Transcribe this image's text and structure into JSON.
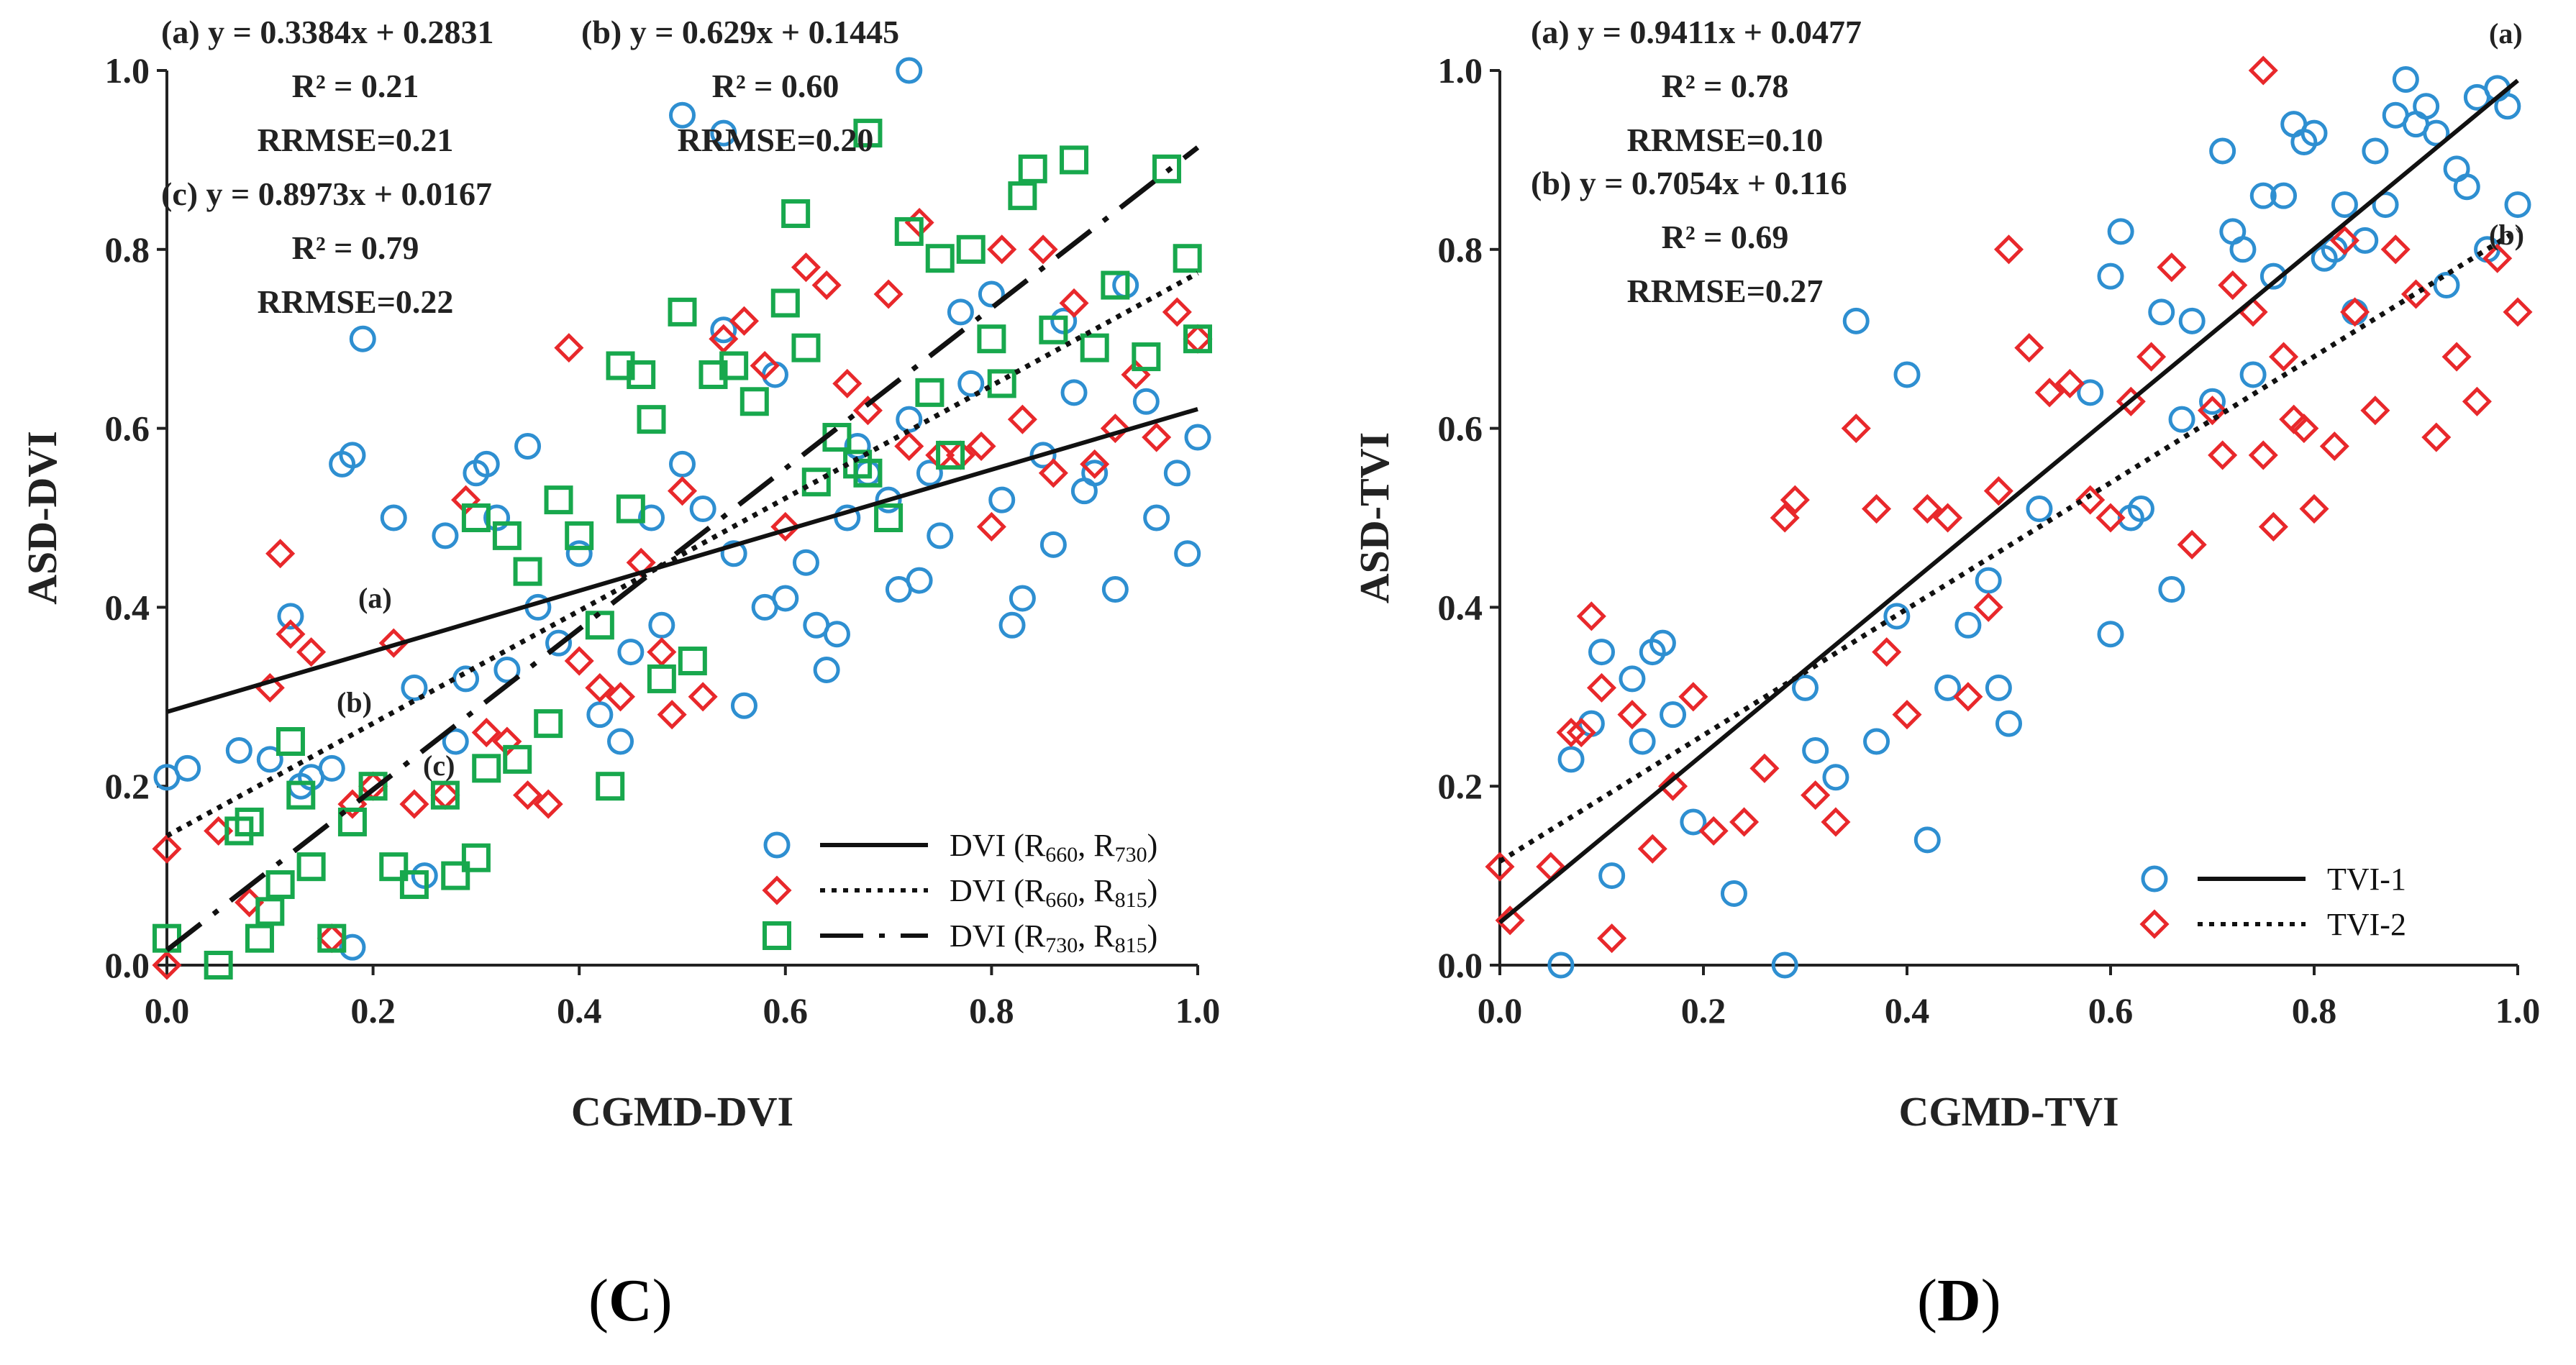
{
  "chart_data": [
    {
      "type": "scatter",
      "panel_id": "C",
      "xlabel": "CGMD-DVI",
      "ylabel": "ASD-DVI",
      "xlim": [
        0.0,
        1.0
      ],
      "ylim": [
        0.0,
        1.0
      ],
      "xticks": [
        "0.0",
        "0.2",
        "0.4",
        "0.6",
        "0.8",
        "1.0"
      ],
      "yticks": [
        "0.0",
        "0.2",
        "0.4",
        "0.6",
        "0.8",
        "1.0"
      ],
      "equations": [
        {
          "line1": "(a) y = 0.3384x + 0.2831",
          "line2": "R² = 0.21",
          "line3": "RRMSE=0.21"
        },
        {
          "line1": "(b) y = 0.629x + 0.1445",
          "line2": "R² = 0.60",
          "line3": "RRMSE=0.20"
        },
        {
          "line1": "(c) y = 0.8973x + 0.0167",
          "line2": "R² = 0.79",
          "line3": "RRMSE=0.22"
        }
      ],
      "line_labels": [
        "(a)",
        "(b)",
        "(c)"
      ],
      "fits": [
        {
          "slope": 0.3384,
          "intercept": 0.2831,
          "style": "solid"
        },
        {
          "slope": 0.629,
          "intercept": 0.1445,
          "style": "dotted"
        },
        {
          "slope": 0.8973,
          "intercept": 0.0167,
          "style": "dashdot"
        }
      ],
      "series": [
        {
          "name": "DVI (R660, R730)",
          "sub1": "660",
          "sub2": "730",
          "marker": "circle",
          "color": "#2e8fd1",
          "x": [
            0.0,
            0.02,
            0.07,
            0.1,
            0.12,
            0.13,
            0.14,
            0.16,
            0.17,
            0.18,
            0.19,
            0.22,
            0.24,
            0.25,
            0.27,
            0.28,
            0.29,
            0.3,
            0.31,
            0.32,
            0.33,
            0.35,
            0.36,
            0.38,
            0.4,
            0.42,
            0.44,
            0.45,
            0.47,
            0.48,
            0.5,
            0.52,
            0.54,
            0.55,
            0.56,
            0.58,
            0.59,
            0.6,
            0.62,
            0.63,
            0.64,
            0.65,
            0.66,
            0.67,
            0.68,
            0.7,
            0.71,
            0.72,
            0.73,
            0.74,
            0.75,
            0.77,
            0.78,
            0.8,
            0.81,
            0.82,
            0.83,
            0.85,
            0.86,
            0.87,
            0.88,
            0.89,
            0.9,
            0.92,
            0.93,
            0.95,
            0.96,
            0.98,
            0.99,
            1.0,
            0.72,
            0.5,
            0.54,
            0.18
          ],
          "y": [
            0.21,
            0.22,
            0.24,
            0.23,
            0.39,
            0.2,
            0.21,
            0.22,
            0.56,
            0.57,
            0.7,
            0.5,
            0.31,
            0.1,
            0.48,
            0.25,
            0.32,
            0.55,
            0.56,
            0.5,
            0.33,
            0.58,
            0.4,
            0.36,
            0.46,
            0.28,
            0.25,
            0.35,
            0.5,
            0.38,
            0.56,
            0.51,
            0.71,
            0.46,
            0.29,
            0.4,
            0.66,
            0.41,
            0.45,
            0.38,
            0.33,
            0.37,
            0.5,
            0.58,
            0.55,
            0.52,
            0.42,
            0.61,
            0.43,
            0.55,
            0.48,
            0.73,
            0.65,
            0.75,
            0.52,
            0.38,
            0.41,
            0.57,
            0.47,
            0.72,
            0.64,
            0.53,
            0.55,
            0.42,
            0.76,
            0.63,
            0.5,
            0.55,
            0.46,
            0.59,
            1.0,
            0.95,
            0.93,
            0.02
          ]
        },
        {
          "name": "DVI (R660, R815)",
          "sub1": "660",
          "sub2": "815",
          "marker": "diamond",
          "color": "#e8282b",
          "x": [
            0.0,
            0.0,
            0.05,
            0.08,
            0.1,
            0.11,
            0.12,
            0.14,
            0.16,
            0.18,
            0.2,
            0.22,
            0.24,
            0.27,
            0.29,
            0.31,
            0.33,
            0.35,
            0.37,
            0.39,
            0.4,
            0.42,
            0.44,
            0.46,
            0.48,
            0.49,
            0.5,
            0.52,
            0.54,
            0.56,
            0.58,
            0.6,
            0.62,
            0.64,
            0.66,
            0.68,
            0.7,
            0.72,
            0.73,
            0.75,
            0.77,
            0.79,
            0.8,
            0.81,
            0.83,
            0.85,
            0.86,
            0.88,
            0.9,
            0.92,
            0.94,
            0.96,
            0.98,
            1.0
          ],
          "y": [
            0.0,
            0.13,
            0.15,
            0.07,
            0.31,
            0.46,
            0.37,
            0.35,
            0.03,
            0.18,
            0.2,
            0.36,
            0.18,
            0.19,
            0.52,
            0.26,
            0.25,
            0.19,
            0.18,
            0.69,
            0.34,
            0.31,
            0.3,
            0.45,
            0.35,
            0.28,
            0.53,
            0.3,
            0.7,
            0.72,
            0.67,
            0.49,
            0.78,
            0.76,
            0.65,
            0.62,
            0.75,
            0.58,
            0.83,
            0.57,
            0.57,
            0.58,
            0.49,
            0.8,
            0.61,
            0.8,
            0.55,
            0.74,
            0.56,
            0.6,
            0.66,
            0.59,
            0.73,
            0.7
          ]
        },
        {
          "name": "DVI (R730, R815)",
          "sub1": "730",
          "sub2": "815",
          "marker": "square",
          "color": "#18a84d",
          "x": [
            0.0,
            0.05,
            0.07,
            0.08,
            0.09,
            0.1,
            0.11,
            0.12,
            0.13,
            0.14,
            0.16,
            0.18,
            0.2,
            0.22,
            0.24,
            0.27,
            0.28,
            0.3,
            0.3,
            0.31,
            0.33,
            0.34,
            0.35,
            0.37,
            0.38,
            0.4,
            0.42,
            0.43,
            0.44,
            0.45,
            0.46,
            0.47,
            0.48,
            0.5,
            0.51,
            0.53,
            0.55,
            0.57,
            0.6,
            0.62,
            0.63,
            0.65,
            0.67,
            0.68,
            0.7,
            0.72,
            0.74,
            0.75,
            0.76,
            0.78,
            0.8,
            0.81,
            0.83,
            0.84,
            0.86,
            0.88,
            0.9,
            0.92,
            0.95,
            0.97,
            0.99,
            1.0,
            0.68,
            0.61
          ],
          "y": [
            0.03,
            0.0,
            0.15,
            0.16,
            0.03,
            0.06,
            0.09,
            0.25,
            0.19,
            0.11,
            0.03,
            0.16,
            0.2,
            0.11,
            0.09,
            0.19,
            0.1,
            0.12,
            0.5,
            0.22,
            0.48,
            0.23,
            0.44,
            0.27,
            0.52,
            0.48,
            0.38,
            0.2,
            0.67,
            0.51,
            0.66,
            0.61,
            0.32,
            0.73,
            0.34,
            0.66,
            0.67,
            0.63,
            0.74,
            0.69,
            0.54,
            0.59,
            0.56,
            0.93,
            0.5,
            0.82,
            0.64,
            0.79,
            0.57,
            0.8,
            0.7,
            0.65,
            0.86,
            0.89,
            0.71,
            0.9,
            0.69,
            0.76,
            0.68,
            0.89,
            0.79,
            0.7,
            0.55,
            0.84
          ]
        }
      ]
    },
    {
      "type": "scatter",
      "panel_id": "D",
      "xlabel": "CGMD-TVI",
      "ylabel": "ASD-TVI",
      "xlim": [
        0.0,
        1.0
      ],
      "ylim": [
        0.0,
        1.0
      ],
      "xticks": [
        "0.0",
        "0.2",
        "0.4",
        "0.6",
        "0.8",
        "1.0"
      ],
      "yticks": [
        "0.0",
        "0.2",
        "0.4",
        "0.6",
        "0.8",
        "1.0"
      ],
      "equations": [
        {
          "line1": "(a) y = 0.9411x + 0.0477",
          "line2": "R² = 0.78",
          "line3": "RRMSE=0.10"
        },
        {
          "line1": "(b) y = 0.7054x + 0.116",
          "line2": "R² = 0.69",
          "line3": "RRMSE=0.27"
        }
      ],
      "line_labels": [
        "(a)",
        "(b)"
      ],
      "fits": [
        {
          "slope": 0.9411,
          "intercept": 0.0477,
          "style": "solid"
        },
        {
          "slope": 0.7054,
          "intercept": 0.116,
          "style": "dotted"
        }
      ],
      "series": [
        {
          "name": "TVI-1",
          "marker": "circle",
          "color": "#2e8fd1",
          "x": [
            0.06,
            0.07,
            0.09,
            0.1,
            0.11,
            0.13,
            0.14,
            0.15,
            0.16,
            0.17,
            0.19,
            0.23,
            0.28,
            0.3,
            0.31,
            0.33,
            0.35,
            0.37,
            0.39,
            0.4,
            0.42,
            0.44,
            0.46,
            0.48,
            0.49,
            0.5,
            0.53,
            0.58,
            0.6,
            0.61,
            0.62,
            0.63,
            0.65,
            0.67,
            0.68,
            0.7,
            0.71,
            0.72,
            0.73,
            0.74,
            0.75,
            0.76,
            0.77,
            0.78,
            0.79,
            0.8,
            0.81,
            0.82,
            0.83,
            0.84,
            0.85,
            0.86,
            0.87,
            0.88,
            0.89,
            0.9,
            0.91,
            0.92,
            0.93,
            0.94,
            0.95,
            0.96,
            0.97,
            0.98,
            0.99,
            1.0,
            0.66,
            0.6
          ],
          "y": [
            0.0,
            0.23,
            0.27,
            0.35,
            0.1,
            0.32,
            0.25,
            0.35,
            0.36,
            0.28,
            0.16,
            0.08,
            0.0,
            0.31,
            0.24,
            0.21,
            0.72,
            0.25,
            0.39,
            0.66,
            0.14,
            0.31,
            0.38,
            0.43,
            0.31,
            0.27,
            0.51,
            0.64,
            0.77,
            0.82,
            0.5,
            0.51,
            0.73,
            0.61,
            0.72,
            0.63,
            0.91,
            0.82,
            0.8,
            0.66,
            0.86,
            0.77,
            0.86,
            0.94,
            0.92,
            0.93,
            0.79,
            0.8,
            0.85,
            0.73,
            0.81,
            0.91,
            0.85,
            0.95,
            0.99,
            0.94,
            0.96,
            0.93,
            0.76,
            0.89,
            0.87,
            0.97,
            0.8,
            0.98,
            0.96,
            0.85,
            0.42,
            0.37
          ]
        },
        {
          "name": "TVI-2",
          "marker": "diamond",
          "color": "#e8282b",
          "x": [
            0.0,
            0.01,
            0.05,
            0.07,
            0.08,
            0.09,
            0.1,
            0.11,
            0.13,
            0.15,
            0.17,
            0.19,
            0.21,
            0.24,
            0.26,
            0.28,
            0.29,
            0.31,
            0.33,
            0.35,
            0.37,
            0.38,
            0.4,
            0.42,
            0.44,
            0.46,
            0.48,
            0.49,
            0.5,
            0.52,
            0.54,
            0.56,
            0.58,
            0.6,
            0.62,
            0.64,
            0.66,
            0.68,
            0.7,
            0.71,
            0.72,
            0.74,
            0.75,
            0.76,
            0.77,
            0.78,
            0.79,
            0.8,
            0.82,
            0.83,
            0.84,
            0.86,
            0.88,
            0.9,
            0.92,
            0.94,
            0.96,
            0.98,
            1.0,
            0.75
          ],
          "y": [
            0.11,
            0.05,
            0.11,
            0.26,
            0.26,
            0.39,
            0.31,
            0.03,
            0.28,
            0.13,
            0.2,
            0.3,
            0.15,
            0.16,
            0.22,
            0.5,
            0.52,
            0.19,
            0.16,
            0.6,
            0.51,
            0.35,
            0.28,
            0.51,
            0.5,
            0.3,
            0.4,
            0.53,
            0.8,
            0.69,
            0.64,
            0.65,
            0.52,
            0.5,
            0.63,
            0.68,
            0.78,
            0.47,
            0.62,
            0.57,
            0.76,
            0.73,
            0.57,
            0.49,
            0.68,
            0.61,
            0.6,
            0.51,
            0.58,
            0.81,
            0.73,
            0.62,
            0.8,
            0.75,
            0.59,
            0.68,
            0.63,
            0.79,
            0.73,
            1.0
          ]
        }
      ]
    }
  ],
  "panel_labels": {
    "left": "C",
    "right": "D"
  }
}
